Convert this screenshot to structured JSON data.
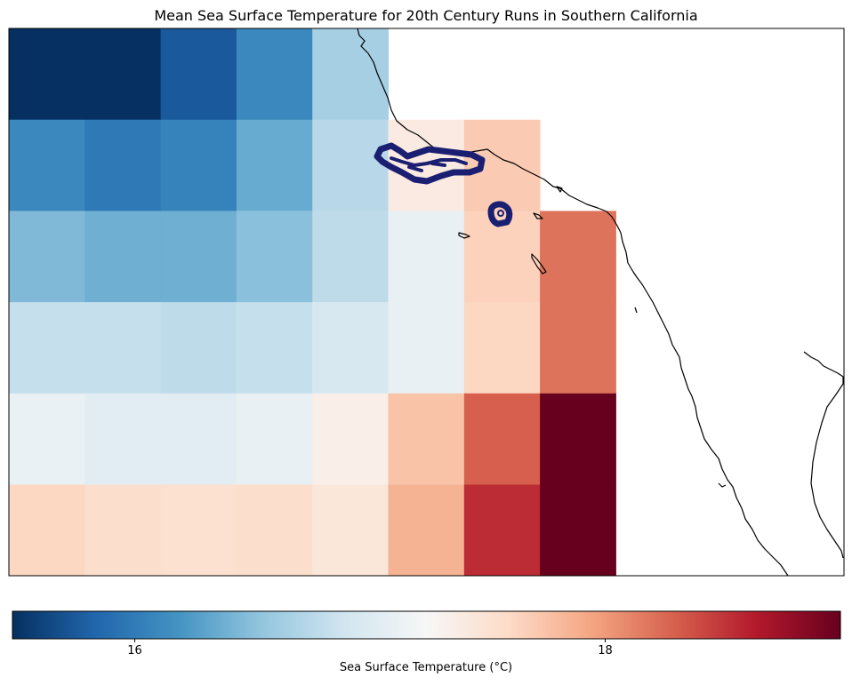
{
  "title": "Mean Sea Surface Temperature for 20th Century Runs in Southern California",
  "colorbar": {
    "label": "Sea Surface Temperature (°C)",
    "colormap": "RdBu_r",
    "vmin": 15.48,
    "vmax": 19.0,
    "ticks": [
      {
        "value": 16,
        "label": "16"
      },
      {
        "value": 18,
        "label": "18"
      }
    ]
  },
  "colors": {
    "contour": "#1b1f72",
    "coastline": "#000000"
  },
  "chart_data": {
    "type": "heatmap",
    "grid_columns": 9,
    "grid_rows": 6,
    "rows": [
      [
        15.48,
        15.48,
        15.75,
        16.1,
        16.65,
        null,
        null,
        null,
        null
      ],
      [
        16.1,
        15.98,
        16.05,
        16.35,
        16.75,
        17.4,
        17.7,
        null,
        null
      ],
      [
        16.45,
        16.38,
        16.38,
        16.5,
        16.78,
        17.1,
        17.65,
        18.2,
        null
      ],
      [
        16.82,
        16.82,
        16.78,
        16.82,
        16.95,
        17.1,
        17.62,
        18.2,
        null
      ],
      [
        17.12,
        17.05,
        17.05,
        17.1,
        17.35,
        17.75,
        18.3,
        19.0,
        null
      ],
      [
        17.62,
        17.55,
        17.52,
        17.55,
        17.45,
        17.85,
        18.55,
        19.0,
        null
      ]
    ],
    "note_land_cells": "null = land / no data"
  }
}
